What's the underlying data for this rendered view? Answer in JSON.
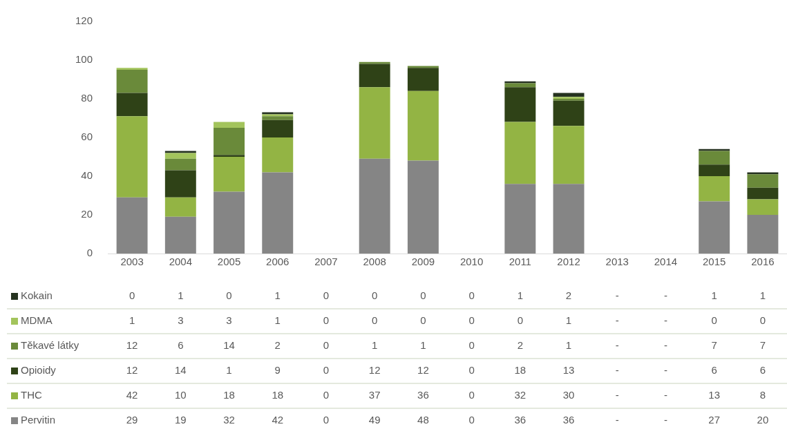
{
  "chart_data": {
    "type": "bar",
    "stacked": true,
    "legend": "bottom left",
    "data_labels": true,
    "categories": [
      "2003",
      "2004",
      "2005",
      "2006",
      "2007",
      "2008",
      "2009",
      "2010",
      "2011",
      "2012",
      "2013",
      "2014",
      "2015",
      "2016"
    ],
    "ylim": [
      0,
      120
    ],
    "yticks": [
      0,
      20,
      40,
      60,
      80,
      100,
      120
    ],
    "grid": false,
    "series": [
      {
        "name": "Pervitin",
        "color": "#858585",
        "values": [
          29,
          19,
          32,
          42,
          0,
          49,
          48,
          0,
          36,
          36,
          null,
          null,
          27,
          20
        ],
        "value_labels": [
          "29",
          "19",
          "32",
          "42",
          "0",
          "49",
          "48",
          "0",
          "36",
          "36",
          "-",
          "-",
          "27",
          "20"
        ]
      },
      {
        "name": "THC",
        "color": "#93b444",
        "values": [
          42,
          10,
          18,
          18,
          0,
          37,
          36,
          0,
          32,
          30,
          null,
          null,
          13,
          8
        ],
        "value_labels": [
          "42",
          "10",
          "18",
          "18",
          "0",
          "37",
          "36",
          "0",
          "32",
          "30",
          "-",
          "-",
          "13",
          "8"
        ]
      },
      {
        "name": "Opioidy",
        "color": "#2f4217",
        "values": [
          12,
          14,
          1,
          9,
          0,
          12,
          12,
          0,
          18,
          13,
          null,
          null,
          6,
          6
        ],
        "value_labels": [
          "12",
          "14",
          "1",
          "9",
          "0",
          "12",
          "12",
          "0",
          "18",
          "13",
          "-",
          "-",
          "6",
          "6"
        ]
      },
      {
        "name": "Těkavé látky",
        "color": "#6a8a3a",
        "values": [
          12,
          6,
          14,
          2,
          0,
          1,
          1,
          0,
          2,
          1,
          null,
          null,
          7,
          7
        ],
        "value_labels": [
          "12",
          "6",
          "14",
          "2",
          "0",
          "1",
          "1",
          "0",
          "2",
          "1",
          "-",
          "-",
          "7",
          "7"
        ]
      },
      {
        "name": "MDMA",
        "color": "#a3c45c",
        "values": [
          1,
          3,
          3,
          1,
          0,
          0,
          0,
          0,
          0,
          1,
          null,
          null,
          0,
          0
        ],
        "value_labels": [
          "1",
          "3",
          "3",
          "1",
          "0",
          "0",
          "0",
          "0",
          "0",
          "1",
          "-",
          "-",
          "0",
          "0"
        ]
      },
      {
        "name": "Kokain",
        "color": "#263320",
        "values": [
          0,
          1,
          0,
          1,
          0,
          0,
          0,
          0,
          1,
          2,
          null,
          null,
          1,
          1
        ],
        "value_labels": [
          "0",
          "1",
          "0",
          "1",
          "0",
          "0",
          "0",
          "0",
          "1",
          "2",
          "-",
          "-",
          "1",
          "1"
        ]
      }
    ]
  }
}
